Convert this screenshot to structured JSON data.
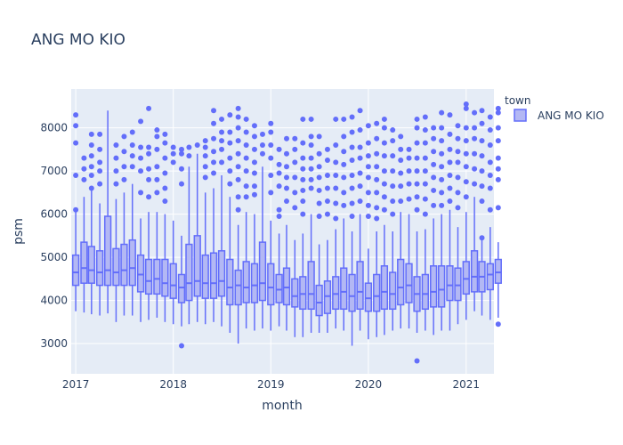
{
  "chart_data": {
    "type": "box",
    "title": "ANG MO KIO",
    "xlabel": "month",
    "ylabel": "psm",
    "x_ticks": [
      "2017",
      "2018",
      "2019",
      "2020",
      "2021"
    ],
    "y_ticks": [
      3000,
      4000,
      5000,
      6000,
      7000,
      8000
    ],
    "xlim": [
      "2016-12-15",
      "2021-04-15"
    ],
    "ylim": [
      2300,
      8900
    ],
    "legend": {
      "title": "town",
      "placement": "top-right",
      "entries": [
        "ANG MO KIO"
      ]
    },
    "colors": {
      "plot_bg": "#e5ecf6",
      "grid": "#ffffff",
      "box_line": "#636efa",
      "box_fill": "#b3b8f4",
      "text": "#2a3f5f"
    },
    "series": [
      {
        "name": "ANG MO KIO",
        "boxes": [
          {
            "x": "2017-01",
            "lf": 3750,
            "q1": 4350,
            "med": 4650,
            "q3": 5050,
            "uf": 6050,
            "outliers": [
              6100,
              6900,
              7650,
              8050,
              8300
            ]
          },
          {
            "x": "2017-02",
            "lf": 3720,
            "q1": 4400,
            "med": 4750,
            "q3": 5350,
            "uf": 6400,
            "outliers": [
              6800,
              7050,
              7300
            ]
          },
          {
            "x": "2017-03",
            "lf": 3680,
            "q1": 4400,
            "med": 4700,
            "q3": 5250,
            "uf": 6550,
            "outliers": [
              6600,
              6900,
              7100,
              7350,
              7600,
              7850
            ]
          },
          {
            "x": "2017-04",
            "lf": 3650,
            "q1": 4350,
            "med": 4650,
            "q3": 5150,
            "uf": 6250,
            "outliers": [
              6700,
              7000,
              7200,
              7500,
              7850
            ]
          },
          {
            "x": "2017-05",
            "lf": 3700,
            "q1": 4350,
            "med": 4700,
            "q3": 5950,
            "uf": 8400,
            "outliers": []
          },
          {
            "x": "2017-06",
            "lf": 3500,
            "q1": 4350,
            "med": 4650,
            "q3": 5200,
            "uf": 6350,
            "outliers": [
              6700,
              7000,
              7300,
              7600
            ]
          },
          {
            "x": "2017-07",
            "lf": 3650,
            "q1": 4350,
            "med": 4700,
            "q3": 5300,
            "uf": 6500,
            "outliers": [
              6800,
              7100,
              7450,
              7800
            ]
          },
          {
            "x": "2017-08",
            "lf": 3650,
            "q1": 4350,
            "med": 4750,
            "q3": 5400,
            "uf": 6700,
            "outliers": [
              7100,
              7350,
              7600,
              7900
            ]
          },
          {
            "x": "2017-09",
            "lf": 3500,
            "q1": 4200,
            "med": 4600,
            "q3": 5050,
            "uf": 5900,
            "outliers": [
              6500,
              7000,
              7300,
              7550,
              8150
            ]
          },
          {
            "x": "2017-10",
            "lf": 3550,
            "q1": 4150,
            "med": 4450,
            "q3": 4950,
            "uf": 6050,
            "outliers": [
              6400,
              6800,
              7050,
              7400,
              7550,
              8450
            ]
          },
          {
            "x": "2017-11",
            "lf": 3600,
            "q1": 4150,
            "med": 4500,
            "q3": 4950,
            "uf": 6050,
            "outliers": [
              6500,
              6800,
              7100,
              7500,
              7800,
              7950
            ]
          },
          {
            "x": "2017-12",
            "lf": 3500,
            "q1": 4100,
            "med": 4400,
            "q3": 4950,
            "uf": 6000,
            "outliers": [
              6300,
              6600,
              6950,
              7300,
              7650,
              7850
            ]
          },
          {
            "x": "2018-01",
            "lf": 3450,
            "q1": 4050,
            "med": 4350,
            "q3": 4850,
            "uf": 5850,
            "outliers": [
              7200,
              7400,
              7550
            ]
          },
          {
            "x": "2018-02",
            "lf": 3400,
            "q1": 3950,
            "med": 4300,
            "q3": 4600,
            "uf": 5500,
            "outliers": [
              2950,
              6700,
              7050,
              7400,
              7500
            ]
          },
          {
            "x": "2018-03",
            "lf": 3450,
            "q1": 4000,
            "med": 4400,
            "q3": 5300,
            "uf": 7100,
            "outliers": [
              7350,
              7550
            ]
          },
          {
            "x": "2018-04",
            "lf": 3500,
            "q1": 4100,
            "med": 4450,
            "q3": 5500,
            "uf": 7400,
            "outliers": [
              7600
            ]
          },
          {
            "x": "2018-05",
            "lf": 3450,
            "q1": 4050,
            "med": 4400,
            "q3": 5050,
            "uf": 6500,
            "outliers": [
              6850,
              7100,
              7350,
              7550,
              7700
            ]
          },
          {
            "x": "2018-06",
            "lf": 3500,
            "q1": 4050,
            "med": 4400,
            "q3": 5100,
            "uf": 6600,
            "outliers": [
              6950,
              7200,
              7450,
              7750,
              8100,
              8400
            ]
          },
          {
            "x": "2018-07",
            "lf": 3400,
            "q1": 4100,
            "med": 4450,
            "q3": 5150,
            "uf": 6900,
            "outliers": [
              7200,
              7500,
              7700,
              7900,
              8200
            ]
          },
          {
            "x": "2018-08",
            "lf": 3250,
            "q1": 3900,
            "med": 4300,
            "q3": 4950,
            "uf": 6400,
            "outliers": [
              6700,
              7000,
              7300,
              7650,
              7900,
              8300
            ]
          },
          {
            "x": "2018-09",
            "lf": 3000,
            "q1": 3900,
            "med": 4350,
            "q3": 4700,
            "uf": 5750,
            "outliers": [
              6100,
              6400,
              6800,
              7100,
              7400,
              7700,
              8000,
              8250,
              8450
            ]
          },
          {
            "x": "2018-10",
            "lf": 3350,
            "q1": 3950,
            "med": 4300,
            "q3": 4900,
            "uf": 6050,
            "outliers": [
              6400,
              6650,
              7000,
              7300,
              7600,
              7900,
              8200
            ]
          },
          {
            "x": "2018-11",
            "lf": 3300,
            "q1": 3950,
            "med": 4350,
            "q3": 4850,
            "uf": 6000,
            "outliers": [
              6450,
              6650,
              6950,
              7200,
              7500,
              7800,
              8050
            ]
          },
          {
            "x": "2018-12",
            "lf": 3350,
            "q1": 4000,
            "med": 4400,
            "q3": 5350,
            "uf": 7100,
            "outliers": [
              7400,
              7600,
              7850
            ]
          },
          {
            "x": "2019-01",
            "lf": 3300,
            "q1": 3900,
            "med": 4300,
            "q3": 4850,
            "uf": 5850,
            "outliers": [
              6500,
              6900,
              7300,
              7600,
              7900,
              8100
            ]
          },
          {
            "x": "2019-02",
            "lf": 3400,
            "q1": 3950,
            "med": 4250,
            "q3": 4600,
            "uf": 5550,
            "outliers": [
              5950,
              6100,
              6650,
              6950,
              7150,
              7500
            ]
          },
          {
            "x": "2019-03",
            "lf": 3300,
            "q1": 3900,
            "med": 4300,
            "q3": 4750,
            "uf": 5750,
            "outliers": [
              6300,
              6600,
              6850,
              7100,
              7400,
              7750
            ]
          },
          {
            "x": "2019-04",
            "lf": 3150,
            "q1": 3850,
            "med": 4100,
            "q3": 4500,
            "uf": 5400,
            "outliers": [
              6150,
              6500,
              6850,
              7200,
              7500,
              7750
            ]
          },
          {
            "x": "2019-05",
            "lf": 3150,
            "q1": 3800,
            "med": 4150,
            "q3": 4550,
            "uf": 5550,
            "outliers": [
              6000,
              6300,
              6550,
              6800,
              7050,
              7300,
              7650,
              8200
            ]
          },
          {
            "x": "2019-06",
            "lf": 3250,
            "q1": 3800,
            "med": 4150,
            "q3": 4900,
            "uf": 6000,
            "outliers": [
              6600,
              6800,
              7050,
              7300,
              7600,
              7800,
              8200
            ]
          },
          {
            "x": "2019-07",
            "lf": 3250,
            "q1": 3650,
            "med": 3950,
            "q3": 4350,
            "uf": 5300,
            "outliers": [
              5950,
              6250,
              6550,
              6850,
              7100,
              7400,
              7800
            ]
          },
          {
            "x": "2019-08",
            "lf": 3250,
            "q1": 3700,
            "med": 4100,
            "q3": 4450,
            "uf": 5400,
            "outliers": [
              6000,
              6300,
              6600,
              6900,
              7250,
              7500
            ]
          },
          {
            "x": "2019-09",
            "lf": 3350,
            "q1": 3800,
            "med": 4150,
            "q3": 4550,
            "uf": 5650,
            "outliers": [
              5900,
              6250,
              6600,
              6900,
              7200,
              7600,
              8200
            ]
          },
          {
            "x": "2019-10",
            "lf": 3300,
            "q1": 3800,
            "med": 4200,
            "q3": 4750,
            "uf": 5900,
            "outliers": [
              6200,
              6500,
              6850,
              7150,
              7450,
              7800,
              8200
            ]
          },
          {
            "x": "2019-11",
            "lf": 2950,
            "q1": 3750,
            "med": 4100,
            "q3": 4600,
            "uf": 5600,
            "outliers": [
              5950,
              6250,
              6600,
              6900,
              7250,
              7550,
              7900,
              8250
            ]
          },
          {
            "x": "2019-12",
            "lf": 3300,
            "q1": 3800,
            "med": 4200,
            "q3": 4900,
            "uf": 6000,
            "outliers": [
              6300,
              6650,
              6950,
              7300,
              7550,
              7950,
              8400
            ]
          },
          {
            "x": "2020-01",
            "lf": 3100,
            "q1": 3750,
            "med": 4050,
            "q3": 4400,
            "uf": 5200,
            "outliers": [
              5950,
              6200,
              6500,
              6850,
              7100,
              7350,
              7650,
              8050
            ]
          },
          {
            "x": "2020-02",
            "lf": 3150,
            "q1": 3750,
            "med": 4100,
            "q3": 4600,
            "uf": 5600,
            "outliers": [
              5900,
              6150,
              6500,
              6800,
              7100,
              7400,
              7750,
              8100
            ]
          },
          {
            "x": "2020-03",
            "lf": 3200,
            "q1": 3800,
            "med": 4200,
            "q3": 4800,
            "uf": 5750,
            "outliers": [
              6100,
              6400,
              6700,
              7000,
              7350,
              7650,
              8000,
              8200
            ]
          },
          {
            "x": "2020-04",
            "lf": 3300,
            "q1": 3800,
            "med": 4150,
            "q3": 4650,
            "uf": 5600,
            "outliers": [
              6000,
              6300,
              6650,
              7000,
              7350,
              7700,
              7950
            ]
          },
          {
            "x": "2020-05",
            "lf": 3350,
            "q1": 3900,
            "med": 4300,
            "q3": 4950,
            "uf": 6050,
            "outliers": [
              6300,
              6650,
              6950,
              7250,
              7500,
              7800
            ]
          },
          {
            "x": "2020-06",
            "lf": 3350,
            "q1": 3950,
            "med": 4350,
            "q3": 4850,
            "uf": 6000,
            "outliers": [
              6350,
              6700,
              7000,
              7300,
              7500
            ]
          },
          {
            "x": "2020-07",
            "lf": 3250,
            "q1": 3750,
            "med": 4150,
            "q3": 4550,
            "uf": 5600,
            "outliers": [
              2600,
              6100,
              6400,
              6700,
              7000,
              7300,
              7650,
              8000,
              8200
            ]
          },
          {
            "x": "2020-08",
            "lf": 3300,
            "q1": 3800,
            "med": 4150,
            "q3": 4600,
            "uf": 5650,
            "outliers": [
              6000,
              6350,
              6700,
              7000,
              7300,
              7650,
              7950,
              8250
            ]
          },
          {
            "x": "2020-09",
            "lf": 3200,
            "q1": 3850,
            "med": 4200,
            "q3": 4800,
            "uf": 5900,
            "outliers": [
              6200,
              6550,
              6850,
              7150,
              7450,
              7750,
              8000
            ]
          },
          {
            "x": "2020-10",
            "lf": 3300,
            "q1": 3850,
            "med": 4250,
            "q3": 4800,
            "uf": 6000,
            "outliers": [
              6200,
              6500,
              6800,
              7100,
              7400,
              7700,
              8000,
              8350
            ]
          },
          {
            "x": "2020-11",
            "lf": 3300,
            "q1": 4000,
            "med": 4350,
            "q3": 4800,
            "uf": 6100,
            "outliers": [
              6300,
              6600,
              6900,
              7200,
              7500,
              7850,
              8300
            ]
          },
          {
            "x": "2020-12",
            "lf": 3450,
            "q1": 4000,
            "med": 4350,
            "q3": 4750,
            "uf": 5700,
            "outliers": [
              6150,
              6500,
              6850,
              7200,
              7450,
              7750,
              8050
            ]
          },
          {
            "x": "2021-01",
            "lf": 3550,
            "q1": 4150,
            "med": 4500,
            "q3": 4900,
            "uf": 6050,
            "outliers": [
              6400,
              6750,
              7100,
              7400,
              7700,
              8000,
              8450,
              8550
            ]
          },
          {
            "x": "2021-02",
            "lf": 3750,
            "q1": 4200,
            "med": 4550,
            "q3": 5150,
            "uf": 6400,
            "outliers": [
              6700,
              7050,
              7400,
              7750,
              8000,
              8350
            ]
          },
          {
            "x": "2021-03",
            "lf": 3650,
            "q1": 4200,
            "med": 4550,
            "q3": 4900,
            "uf": 5450,
            "outliers": [
              5450,
              6300,
              6650,
              7000,
              7350,
              7700,
              8100,
              8400
            ]
          },
          {
            "x": "2021-04",
            "lf": 3550,
            "q1": 4250,
            "med": 4600,
            "q3": 4850,
            "uf": 5700,
            "outliers": [
              6100,
              6600,
              6900,
              7200,
              7600,
              7950,
              8250
            ]
          },
          {
            "x": "2021-05",
            "lf": 3600,
            "q1": 4400,
            "med": 4650,
            "q3": 4950,
            "uf": 5350,
            "outliers": [
              3450,
              6150,
              6800,
              7050,
              7300,
              7700,
              8000,
              8350,
              8450
            ]
          }
        ]
      }
    ]
  }
}
